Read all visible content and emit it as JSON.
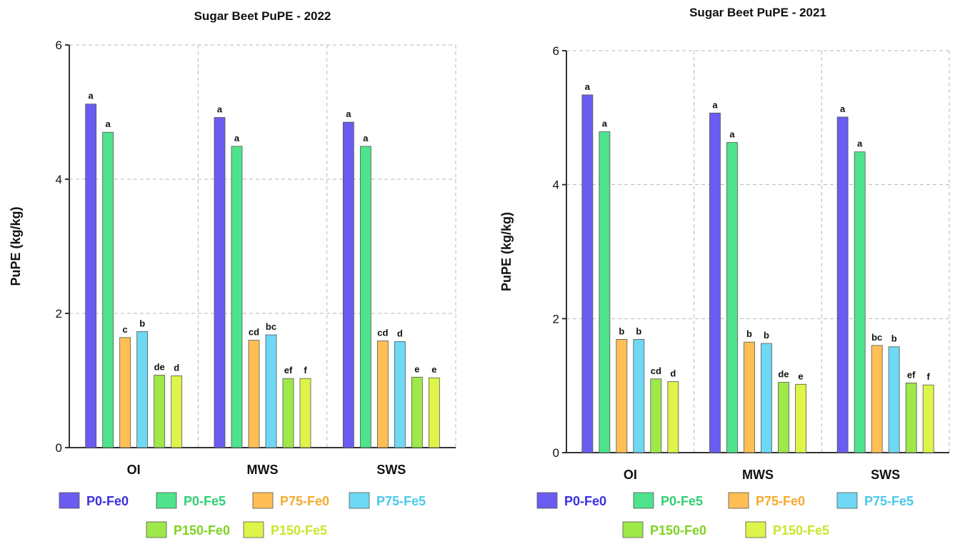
{
  "colors": {
    "P0-Fe0": "#6a5cf0",
    "P0-Fe5": "#4ee38c",
    "P75-Fe0": "#ffbf55",
    "P75-Fe5": "#6fd8f5",
    "P150-Fe0": "#9ee84a",
    "P150-Fe5": "#def44a"
  },
  "legend_text_colors": {
    "P0-Fe0": "#3b2fe0",
    "P0-Fe5": "#2fcf72",
    "P75-Fe0": "#f6a92e",
    "P75-Fe5": "#49c9ec",
    "P150-Fe0": "#7ed31f",
    "P150-Fe5": "#c9e62a"
  },
  "chart_data": [
    {
      "type": "bar",
      "title": "Sugar Beet PuPE - 2022",
      "xlabel": "",
      "ylabel": "PuPE (kg/kg)",
      "ylim": [
        0,
        6
      ],
      "yticks": [
        "0",
        "2",
        "4",
        "6"
      ],
      "categories": [
        "OI",
        "MWS",
        "SWS"
      ],
      "grid": true,
      "legend_position": "bottom",
      "series": [
        {
          "name": "P0-Fe0",
          "values": [
            5.12,
            4.92,
            4.85
          ],
          "labels": [
            "a",
            "a",
            "a"
          ]
        },
        {
          "name": "P0-Fe5",
          "values": [
            4.7,
            4.49,
            4.49
          ],
          "labels": [
            "a",
            "a",
            "a"
          ]
        },
        {
          "name": "P75-Fe0",
          "values": [
            1.64,
            1.6,
            1.59
          ],
          "labels": [
            "c",
            "cd",
            "cd"
          ]
        },
        {
          "name": "P75-Fe5",
          "values": [
            1.73,
            1.68,
            1.58
          ],
          "labels": [
            "b",
            "bc",
            "d"
          ]
        },
        {
          "name": "P150-Fe0",
          "values": [
            1.08,
            1.03,
            1.05
          ],
          "labels": [
            "de",
            "ef",
            "e"
          ]
        },
        {
          "name": "P150-Fe5",
          "values": [
            1.07,
            1.03,
            1.04
          ],
          "labels": [
            "d",
            "f",
            "e"
          ]
        }
      ]
    },
    {
      "type": "bar",
      "title": "Sugar Beet PuPE - 2021",
      "xlabel": "",
      "ylabel": "PuPE (kg/kg)",
      "ylim": [
        0,
        6
      ],
      "yticks": [
        "0",
        "2",
        "4",
        "6"
      ],
      "categories": [
        "OI",
        "MWS",
        "SWS"
      ],
      "grid": true,
      "legend_position": "bottom",
      "series": [
        {
          "name": "P0-Fe0",
          "values": [
            5.34,
            5.07,
            5.01
          ],
          "labels": [
            "a",
            "a",
            "a"
          ]
        },
        {
          "name": "P0-Fe5",
          "values": [
            4.79,
            4.63,
            4.49
          ],
          "labels": [
            "a",
            "a",
            "a"
          ]
        },
        {
          "name": "P75-Fe0",
          "values": [
            1.69,
            1.65,
            1.6
          ],
          "labels": [
            "b",
            "b",
            "bc"
          ]
        },
        {
          "name": "P75-Fe5",
          "values": [
            1.69,
            1.63,
            1.58
          ],
          "labels": [
            "b",
            "b",
            "b"
          ]
        },
        {
          "name": "P150-Fe0",
          "values": [
            1.1,
            1.05,
            1.04
          ],
          "labels": [
            "cd",
            "de",
            "ef"
          ]
        },
        {
          "name": "P150-Fe5",
          "values": [
            1.06,
            1.02,
            1.01
          ],
          "labels": [
            "d",
            "e",
            "f"
          ]
        }
      ]
    }
  ]
}
